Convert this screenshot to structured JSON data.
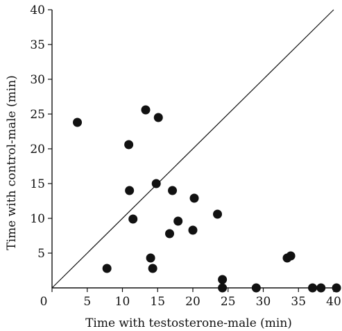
{
  "chart_data": {
    "type": "scatter",
    "xlabel": "Time with testosterone-male (min)",
    "ylabel": "Time with control-male (min)",
    "xlim": [
      0,
      40
    ],
    "ylim": [
      0,
      40
    ],
    "x_ticks": [
      0,
      5,
      10,
      15,
      20,
      25,
      30,
      35,
      40
    ],
    "y_ticks": [
      5,
      10,
      15,
      20,
      25,
      30,
      35,
      40
    ],
    "x_tick_labels": [
      "0",
      "5",
      "10",
      "15",
      "20",
      "25",
      "30",
      "35",
      "40"
    ],
    "y_tick_labels": [
      "5",
      "10",
      "15",
      "20",
      "25",
      "30",
      "35",
      "40"
    ],
    "grid": false,
    "reference_line": {
      "type": "identity",
      "from": [
        0,
        0
      ],
      "to": [
        40,
        40
      ]
    },
    "points": [
      {
        "x": 3.6,
        "y": 23.8
      },
      {
        "x": 7.8,
        "y": 2.8
      },
      {
        "x": 10.9,
        "y": 20.6
      },
      {
        "x": 11.0,
        "y": 14.0
      },
      {
        "x": 11.5,
        "y": 9.9
      },
      {
        "x": 13.3,
        "y": 25.6
      },
      {
        "x": 14.0,
        "y": 4.3
      },
      {
        "x": 14.3,
        "y": 2.8
      },
      {
        "x": 14.8,
        "y": 15.0
      },
      {
        "x": 15.1,
        "y": 24.5
      },
      {
        "x": 16.7,
        "y": 7.8
      },
      {
        "x": 17.1,
        "y": 14.0
      },
      {
        "x": 17.9,
        "y": 9.6
      },
      {
        "x": 20.0,
        "y": 8.3
      },
      {
        "x": 20.2,
        "y": 12.9
      },
      {
        "x": 23.5,
        "y": 10.6
      },
      {
        "x": 24.2,
        "y": 1.2
      },
      {
        "x": 24.2,
        "y": 0.0
      },
      {
        "x": 29.0,
        "y": 0.0
      },
      {
        "x": 33.4,
        "y": 4.3
      },
      {
        "x": 33.9,
        "y": 4.6
      },
      {
        "x": 37.0,
        "y": 0.0
      },
      {
        "x": 38.2,
        "y": 0.0
      },
      {
        "x": 40.4,
        "y": 0.0
      }
    ],
    "colors": {
      "marker": "#111111",
      "line": "#111111",
      "text": "#111111"
    }
  }
}
